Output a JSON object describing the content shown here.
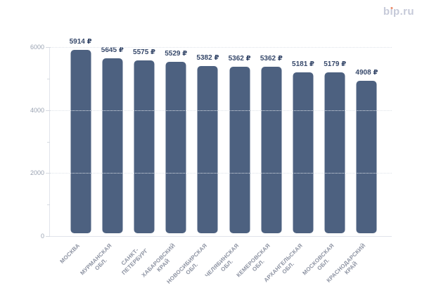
{
  "logo": {
    "text": "bip.ru",
    "dot_color": "#ee8a67"
  },
  "colors": {
    "bar": "#4d6180",
    "value_label": "#36486a",
    "axis_label": "#9aa3b2",
    "category_label": "#8d93a2",
    "gridline": "#dee2e9",
    "background": "#ffffff"
  },
  "chart_data": {
    "type": "bar",
    "title": "",
    "xlabel": "",
    "ylabel": "",
    "categories": [
      "МОСКВА",
      "МУРМАНСКАЯ\nОБЛ.",
      "САНКТ-\nПЕТЕРБУРГ",
      "ХАБАРОВСКИЙ\nКРАЙ",
      "НОВОСИБИРСКАЯ\nОБЛ.",
      "ЧЕЛЯБИНСКАЯ\nОБЛ.",
      "КЕМЕРОВСКАЯ\nОБЛ.",
      "АРХАНГЕЛЬСКАЯ\nОБЛ.",
      "МОСКОВСКАЯ\nОБЛ.",
      "КРАСНОДАРСКИЙ\nКРАЙ"
    ],
    "values": [
      5914,
      5645,
      5575,
      5529,
      5382,
      5362,
      5362,
      5181,
      5179,
      4908
    ],
    "value_labels": [
      "5914 ₽",
      "5645 ₽",
      "5575 ₽",
      "5529 ₽",
      "5382 ₽",
      "5362 ₽",
      "5362 ₽",
      "5181 ₽",
      "5179 ₽",
      "4908 ₽"
    ],
    "value_suffix": " ₽",
    "ylim": [
      0,
      6000
    ],
    "yticks": [
      0,
      2000,
      4000,
      6000
    ],
    "minor_yticks": [
      1000,
      3000,
      5000
    ],
    "grid": "horizontal-dotted",
    "legend": "none"
  }
}
